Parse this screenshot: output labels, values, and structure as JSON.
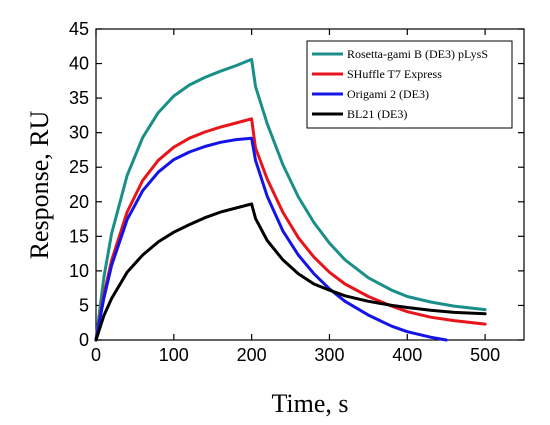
{
  "chart_data": {
    "type": "line",
    "title": "",
    "xlabel": "Time, s",
    "ylabel": "Response, RU",
    "xlim": [
      0,
      550
    ],
    "ylim": [
      0,
      45
    ],
    "xticks": [
      0,
      100,
      200,
      300,
      400,
      500
    ],
    "yticks": [
      0,
      5,
      10,
      15,
      20,
      25,
      30,
      35,
      40,
      45
    ],
    "grid": false,
    "legend_position": "top-right",
    "series": [
      {
        "name": "Rosetta-gami B (DE3) pLysS",
        "color": "#1a8f8a",
        "x": [
          0,
          10,
          20,
          40,
          60,
          80,
          100,
          120,
          140,
          160,
          180,
          200,
          205,
          220,
          240,
          260,
          280,
          300,
          320,
          350,
          380,
          400,
          430,
          460,
          500
        ],
        "y": [
          0,
          9,
          15.4,
          23.8,
          29.3,
          32.9,
          35.3,
          36.9,
          38.0,
          38.9,
          39.7,
          40.6,
          36.7,
          31.3,
          25.4,
          20.7,
          17.0,
          14.0,
          11.6,
          9.0,
          7.2,
          6.3,
          5.5,
          4.9,
          4.4
        ]
      },
      {
        "name": "SHuffle T7 Express",
        "color": "#e8141b",
        "x": [
          0,
          10,
          20,
          40,
          60,
          80,
          100,
          120,
          140,
          160,
          180,
          200,
          205,
          220,
          240,
          260,
          280,
          300,
          320,
          350,
          380,
          400,
          430,
          460,
          500
        ],
        "y": [
          0,
          6.5,
          11.5,
          18.5,
          23.1,
          26.0,
          27.9,
          29.2,
          30.1,
          30.8,
          31.4,
          32.0,
          27.8,
          23.3,
          18.5,
          14.8,
          12.0,
          9.8,
          8.1,
          6.3,
          4.9,
          4.1,
          3.3,
          2.8,
          2.3
        ]
      },
      {
        "name": "Origami 2 (DE3)",
        "color": "#1414e6",
        "x": [
          0,
          10,
          20,
          40,
          60,
          80,
          100,
          120,
          140,
          160,
          180,
          200,
          205,
          220,
          240,
          260,
          280,
          300,
          320,
          350,
          380,
          400,
          430,
          450
        ],
        "y": [
          0,
          6,
          10.8,
          17.4,
          21.6,
          24.3,
          26.1,
          27.2,
          28.0,
          28.6,
          29.0,
          29.2,
          26.0,
          20.8,
          15.8,
          12.3,
          9.6,
          7.4,
          5.6,
          3.6,
          2.0,
          1.2,
          0.4,
          0.0
        ]
      },
      {
        "name": "BL21 (DE3)",
        "color": "#000000",
        "x": [
          0,
          10,
          20,
          40,
          60,
          80,
          100,
          120,
          140,
          160,
          180,
          200,
          205,
          220,
          240,
          260,
          280,
          300,
          320,
          350,
          380,
          400,
          430,
          460,
          500
        ],
        "y": [
          0,
          3.5,
          6.0,
          9.8,
          12.3,
          14.2,
          15.6,
          16.7,
          17.7,
          18.5,
          19.1,
          19.7,
          17.6,
          14.4,
          11.6,
          9.6,
          8.1,
          7.2,
          6.4,
          5.6,
          5.0,
          4.7,
          4.3,
          4.0,
          3.8
        ]
      }
    ]
  }
}
